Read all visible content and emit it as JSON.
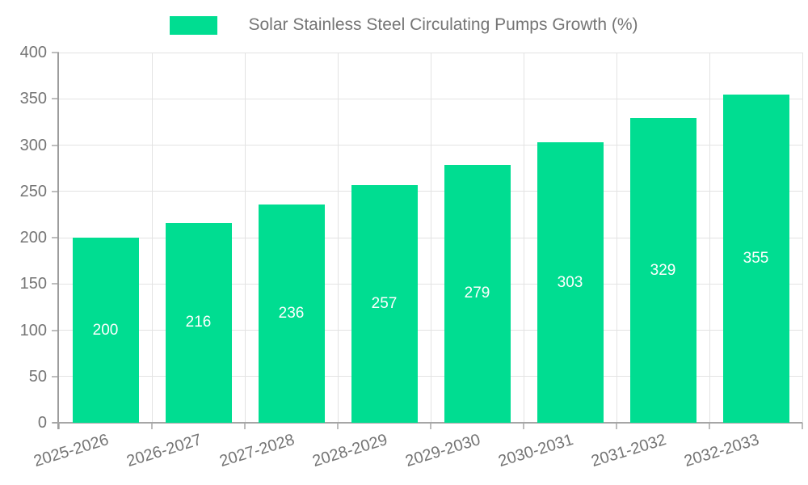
{
  "legend": {
    "label": "Solar Stainless Steel Circulating Pumps Growth (%)"
  },
  "chart_data": {
    "type": "bar",
    "title": "Solar Stainless Steel Circulating Pumps Growth (%)",
    "categories": [
      "2025-2026",
      "2026-2027",
      "2027-2028",
      "2028-2029",
      "2029-2030",
      "2030-2031",
      "2031-2032",
      "2032-2033"
    ],
    "values": [
      200,
      216,
      236,
      257,
      279,
      303,
      329,
      355
    ],
    "series_name": "Solar Stainless Steel Circulating Pumps Growth (%)",
    "xlabel": "",
    "ylabel": "",
    "ylim": [
      0,
      400
    ],
    "ytick_step": 50,
    "ytick_labels": [
      "0",
      "50",
      "100",
      "150",
      "200",
      "250",
      "300",
      "350",
      "400"
    ],
    "grid": true,
    "legend_position": "top",
    "bar_color": "#00dd91",
    "value_label_color": "#ffffff",
    "axis_text_color": "#757575",
    "gridline_color": "#e3e3e3",
    "axis_line_color": "#9d9d9d"
  }
}
